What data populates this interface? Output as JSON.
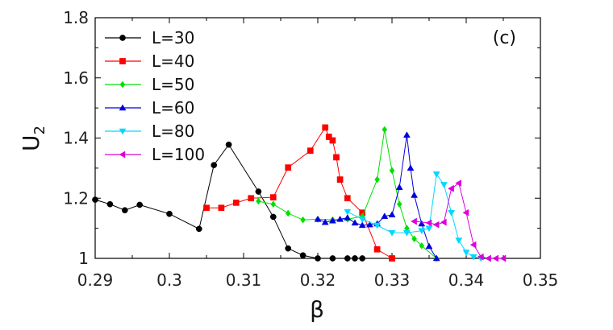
{
  "chart_data": {
    "type": "line",
    "annotation": "(c)",
    "xlabel": "β",
    "ylabel": "U",
    "ylabel_sub": "2",
    "xlim": [
      0.29,
      0.35
    ],
    "ylim": [
      1.0,
      1.8
    ],
    "xticks": [
      "0.29",
      "0.3",
      "0.31",
      "0.32",
      "0.33",
      "0.34",
      "0.35"
    ],
    "yticks": [
      "1",
      "1.2",
      "1.4",
      "1.6",
      "1.8"
    ],
    "grid": false,
    "legend_position": "top-left",
    "series": [
      {
        "name": "L=30",
        "color": "#000000",
        "marker": "circle",
        "x": [
          0.29,
          0.292,
          0.294,
          0.296,
          0.3,
          0.304,
          0.306,
          0.308,
          0.312,
          0.314,
          0.316,
          0.318,
          0.32,
          0.322,
          0.324,
          0.325,
          0.326
        ],
        "y": [
          1.195,
          1.18,
          1.16,
          1.178,
          1.148,
          1.098,
          1.31,
          1.378,
          1.222,
          1.138,
          1.033,
          1.01,
          1.0,
          1.0,
          1.0,
          1.0,
          1.0
        ]
      },
      {
        "name": "L=40",
        "color": "#ff0000",
        "marker": "square",
        "x": [
          0.305,
          0.307,
          0.309,
          0.311,
          0.314,
          0.316,
          0.319,
          0.321,
          0.3215,
          0.322,
          0.3225,
          0.323,
          0.324,
          0.326,
          0.328,
          0.33
        ],
        "y": [
          1.168,
          1.168,
          1.185,
          1.2,
          1.203,
          1.302,
          1.358,
          1.435,
          1.404,
          1.392,
          1.336,
          1.262,
          1.2,
          1.152,
          1.03,
          1.0
        ]
      },
      {
        "name": "L=50",
        "color": "#00e000",
        "marker": "diamond",
        "x": [
          0.312,
          0.314,
          0.316,
          0.318,
          0.32,
          0.322,
          0.324,
          0.326,
          0.328,
          0.329,
          0.33,
          0.331,
          0.332,
          0.333,
          0.334,
          0.336
        ],
        "y": [
          1.19,
          1.18,
          1.15,
          1.128,
          1.13,
          1.128,
          1.13,
          1.14,
          1.262,
          1.428,
          1.292,
          1.18,
          1.1,
          1.065,
          1.042,
          1.0
        ]
      },
      {
        "name": "L=60",
        "color": "#0000dd",
        "marker": "triangle-up",
        "x": [
          0.32,
          0.321,
          0.322,
          0.323,
          0.324,
          0.325,
          0.326,
          0.327,
          0.328,
          0.329,
          0.33,
          0.331,
          0.332,
          0.3325,
          0.333,
          0.334,
          0.335,
          0.336
        ],
        "y": [
          1.13,
          1.12,
          1.125,
          1.13,
          1.135,
          1.118,
          1.11,
          1.112,
          1.115,
          1.14,
          1.145,
          1.236,
          1.41,
          1.3,
          1.21,
          1.115,
          1.04,
          1.0
        ]
      },
      {
        "name": "L=80",
        "color": "#00d8ff",
        "marker": "triangle-down",
        "x": [
          0.324,
          0.326,
          0.328,
          0.33,
          0.332,
          0.334,
          0.335,
          0.336,
          0.337,
          0.338,
          0.339,
          0.34,
          0.341,
          0.342
        ],
        "y": [
          1.155,
          1.13,
          1.11,
          1.085,
          1.085,
          1.092,
          1.1,
          1.28,
          1.245,
          1.152,
          1.06,
          1.02,
          1.005,
          1.0
        ]
      },
      {
        "name": "L=100",
        "color": "#dd00dd",
        "marker": "triangle-left",
        "x": [
          0.333,
          0.335,
          0.336,
          0.337,
          0.338,
          0.339,
          0.34,
          0.341,
          0.342,
          0.343,
          0.344,
          0.345
        ],
        "y": [
          1.123,
          1.118,
          1.112,
          1.12,
          1.232,
          1.25,
          1.152,
          1.045,
          1.005,
          1.0,
          1.0,
          1.0
        ]
      }
    ]
  }
}
